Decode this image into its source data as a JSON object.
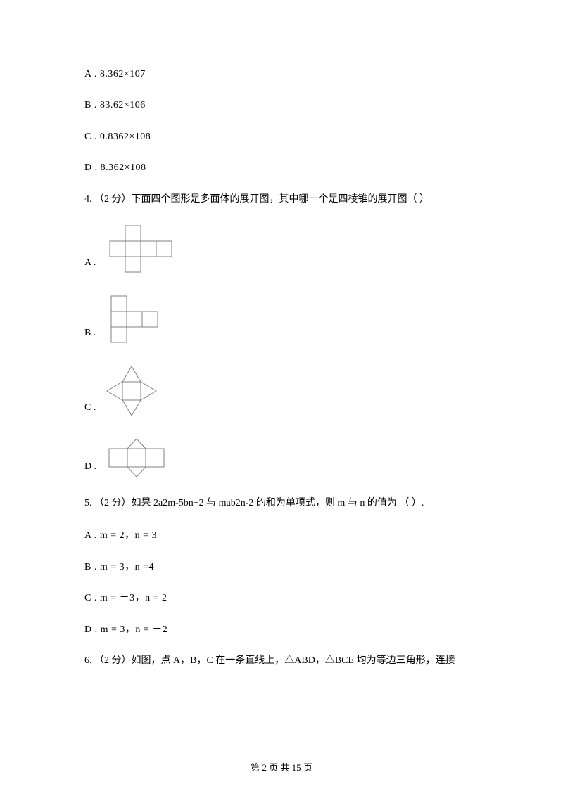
{
  "q3": {
    "optA": "A .  8.362×107",
    "optB": "B .  83.62×106",
    "optC": "C .  0.8362×108",
    "optD": "D .  8.362×108"
  },
  "q4": {
    "stem": "4.  （2 分）下面四个图形是多面体的展开图，其中哪一个是四棱锥的展开图（      ）",
    "optA": "A .",
    "optB": "B .",
    "optC": "C .",
    "optD": "D ."
  },
  "q5": {
    "stem": "5.  （2 分）如果 2a2m-5bn+2 与 mab2n-2 的和为单项式，则 m 与 n 的值为    （      ）.",
    "optA": "A .  m = 2，n = 3",
    "optB": "B .  m = 3，n =4",
    "optC": "C .  m = －3，n = 2",
    "optD": "D .  m = 3，n = －2"
  },
  "q6": {
    "stem": "6.   （2 分）如图，点 A，B，C 在一条直线上，△ABD，△BCE 均为等边三角形，连接"
  },
  "footer": "第 2 页 共 15 页",
  "style": {
    "stroke": "#808080",
    "stroke_width": 1,
    "bg": "#ffffff"
  }
}
